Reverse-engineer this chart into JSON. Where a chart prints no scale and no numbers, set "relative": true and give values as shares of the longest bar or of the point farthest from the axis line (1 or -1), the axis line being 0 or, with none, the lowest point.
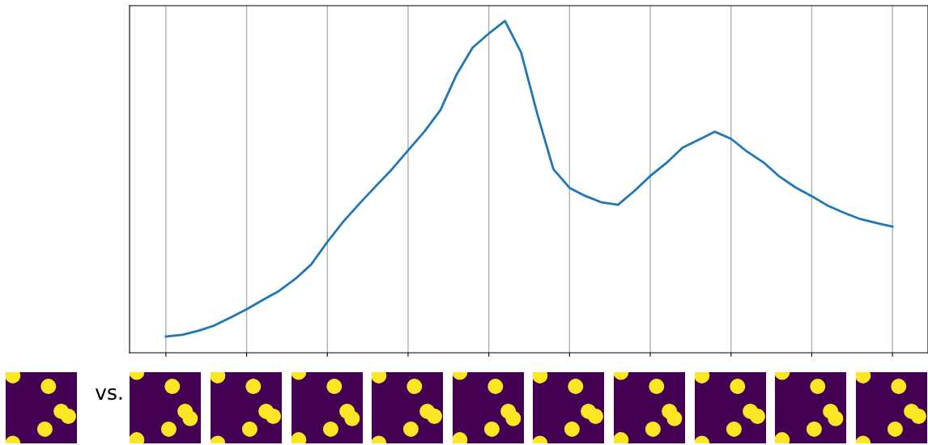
{
  "chart_data": {
    "type": "line",
    "relative": true,
    "grid": "x",
    "tick_labels": false,
    "categories": [
      null,
      null,
      null,
      null,
      null,
      null,
      null,
      null,
      null,
      null,
      null,
      null,
      null,
      null,
      null,
      null,
      null,
      null,
      null,
      null,
      null,
      null,
      null,
      null,
      null,
      null,
      null,
      null,
      null,
      null,
      null,
      null,
      null,
      null,
      null,
      null,
      null,
      null,
      null,
      null,
      null,
      null,
      null,
      null,
      null,
      null
    ],
    "series": [
      {
        "color": "#1f77b4",
        "values": [
          0.049,
          0.054,
          0.066,
          0.082,
          0.106,
          0.131,
          0.159,
          0.186,
          0.222,
          0.266,
          0.334,
          0.396,
          0.45,
          0.502,
          0.553,
          0.61,
          0.666,
          0.731,
          0.838,
          0.92,
          0.962,
          1.0,
          0.905,
          0.72,
          0.553,
          0.497,
          0.472,
          0.453,
          0.446,
          0.487,
          0.533,
          0.572,
          0.618,
          0.642,
          0.666,
          0.645,
          0.606,
          0.574,
          0.531,
          0.498,
          0.472,
          0.443,
          0.422,
          0.403,
          0.391,
          0.38
        ]
      }
    ],
    "annotations": [
      "vs."
    ]
  }
}
